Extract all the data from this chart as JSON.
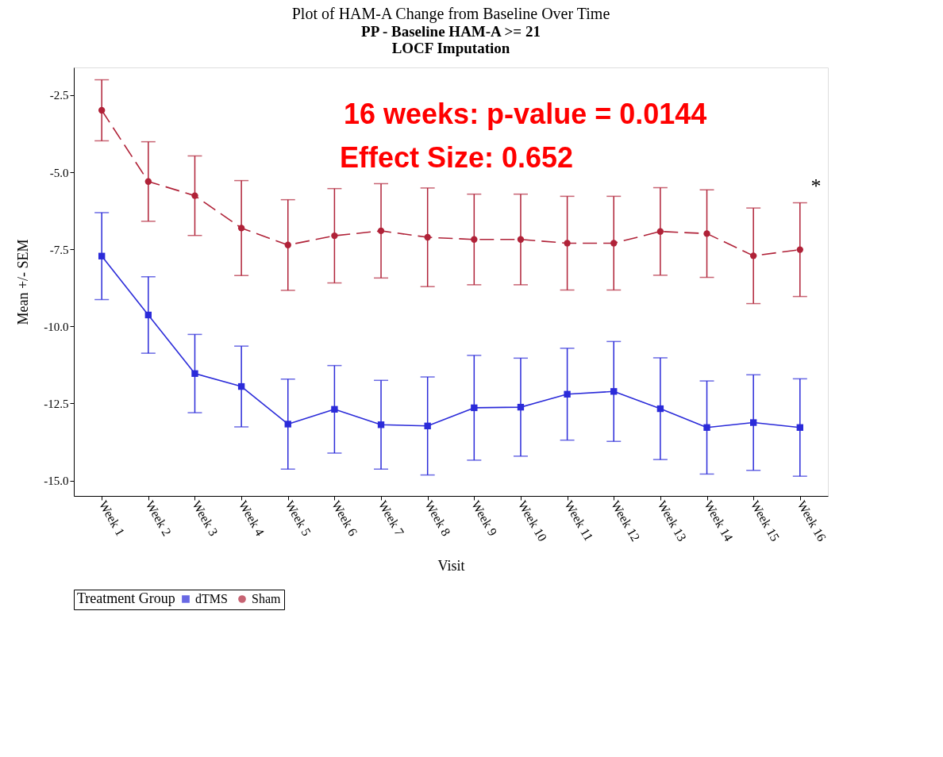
{
  "chart_data": {
    "type": "line",
    "title": "Plot of HAM-A Change from Baseline Over Time",
    "subtitle": "PP - Baseline HAM-A >= 21\nLOCF Imputation",
    "xlabel": "Visit",
    "ylabel": "Mean +/- SEM",
    "legend_title": "Treatment Group",
    "categories": [
      "Week 1",
      "Week 2",
      "Week 3",
      "Week 4",
      "Week 5",
      "Week 6",
      "Week 7",
      "Week 8",
      "Week 9",
      "Week 10",
      "Week 11",
      "Week 12",
      "Week 13",
      "Week 14",
      "Week 15",
      "Week 16"
    ],
    "series": [
      {
        "name": "dTMS",
        "color": "#2b2bd9",
        "marker": "square",
        "line_style": "solid",
        "values": [
          -7.72,
          -9.63,
          -11.53,
          -11.95,
          -13.17,
          -12.69,
          -13.19,
          -13.23,
          -12.64,
          -12.62,
          -12.2,
          -12.11,
          -12.67,
          -13.28,
          -13.12,
          -13.28
        ],
        "errors": [
          1.41,
          1.24,
          1.27,
          1.31,
          1.46,
          1.42,
          1.44,
          1.59,
          1.7,
          1.59,
          1.49,
          1.62,
          1.65,
          1.51,
          1.55,
          1.58
        ]
      },
      {
        "name": "Sham",
        "color": "#b02238",
        "marker": "circle",
        "line_style": "dashed",
        "values": [
          -2.99,
          -5.3,
          -5.76,
          -6.81,
          -7.36,
          -7.06,
          -6.9,
          -7.11,
          -7.18,
          -7.18,
          -7.3,
          -7.3,
          -6.92,
          -6.99,
          -7.71,
          -7.51
        ],
        "errors": [
          0.99,
          1.29,
          1.29,
          1.54,
          1.47,
          1.53,
          1.53,
          1.6,
          1.47,
          1.47,
          1.52,
          1.52,
          1.42,
          1.42,
          1.55,
          1.52
        ]
      }
    ],
    "ylim": [
      -15.5,
      -1.6
    ],
    "yticks": [
      {
        "value": -15,
        "label": "-15.0"
      },
      -12.5,
      {
        "value": -10,
        "label": "-10.0"
      },
      -7.5,
      {
        "value": -5,
        "label": "-5.0"
      },
      -2.5
    ],
    "annotations": [
      "16 weeks: p-value = 0.0144",
      "Effect Size: 0.652",
      "*"
    ],
    "legend": "bottom",
    "grid": false
  }
}
